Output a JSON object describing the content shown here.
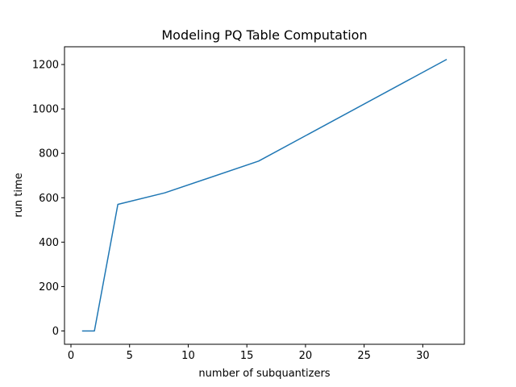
{
  "chart_data": {
    "type": "line",
    "title": "Modeling PQ Table Computation",
    "xlabel": "number of subquantizers",
    "ylabel": "run time",
    "xlim": [
      -0.55,
      33.55
    ],
    "ylim": [
      -60,
      1280
    ],
    "xticks": [
      0,
      5,
      10,
      15,
      20,
      25,
      30
    ],
    "yticks": [
      0,
      200,
      400,
      600,
      800,
      1000,
      1200
    ],
    "grid": false,
    "series": [
      {
        "color": "#1f77b4",
        "x": [
          1,
          2,
          4,
          8,
          16,
          32
        ],
        "y": [
          0,
          0,
          570,
          622,
          765,
          1222
        ]
      }
    ]
  }
}
